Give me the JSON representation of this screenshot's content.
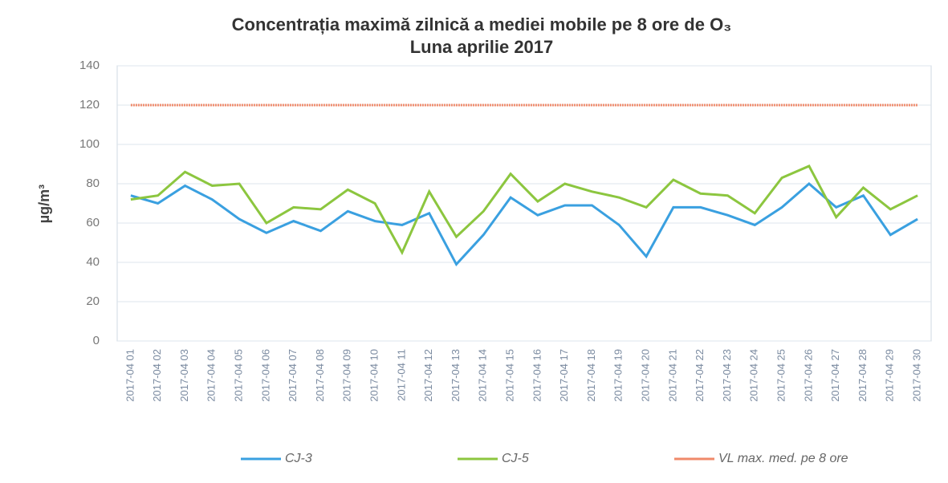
{
  "chart_data": {
    "type": "line",
    "title": "Concentrația maximă zilnică a mediei mobile pe 8 ore de O₃",
    "subtitle": "Luna aprilie 2017",
    "y_label": "µg/m³",
    "categories": [
      "2017-04 01",
      "2017-04 02",
      "2017-04 03",
      "2017-04 04",
      "2017-04 05",
      "2017-04 06",
      "2017-04 07",
      "2017-04 08",
      "2017-04 09",
      "2017-04 10",
      "2017-04 11",
      "2017-04 12",
      "2017-04 13",
      "2017-04 14",
      "2017-04 15",
      "2017-04 16",
      "2017-04 17",
      "2017-04 18",
      "2017-04 19",
      "2017-04 20",
      "2017-04 21",
      "2017-04 22",
      "2017-04 23",
      "2017-04 24",
      "2017-04 25",
      "2017-04 26",
      "2017-04 27",
      "2017-04 28",
      "2017-04 29",
      "2017-04 30"
    ],
    "series": [
      {
        "name": "CJ-3",
        "color": "#3aa0e0",
        "values": [
          74,
          70,
          79,
          72,
          62,
          55,
          61,
          56,
          66,
          61,
          59,
          65,
          39,
          54,
          73,
          64,
          69,
          69,
          59,
          43,
          68,
          68,
          64,
          59,
          68,
          80,
          68,
          74,
          54,
          62
        ]
      },
      {
        "name": "CJ-5",
        "color": "#8cc63f",
        "values": [
          72,
          74,
          86,
          79,
          80,
          60,
          68,
          67,
          77,
          70,
          45,
          76,
          53,
          66,
          85,
          71,
          80,
          76,
          73,
          68,
          82,
          75,
          74,
          65,
          83,
          89,
          63,
          78,
          67,
          74
        ]
      },
      {
        "name": "VL max. med. pe 8 ore",
        "color": "#f08a6a",
        "values": [
          120,
          120,
          120,
          120,
          120,
          120,
          120,
          120,
          120,
          120,
          120,
          120,
          120,
          120,
          120,
          120,
          120,
          120,
          120,
          120,
          120,
          120,
          120,
          120,
          120,
          120,
          120,
          120,
          120,
          120
        ]
      }
    ],
    "ylim": [
      0,
      140
    ],
    "yticks": [
      0,
      20,
      40,
      60,
      80,
      100,
      120,
      140
    ],
    "grid": true
  }
}
